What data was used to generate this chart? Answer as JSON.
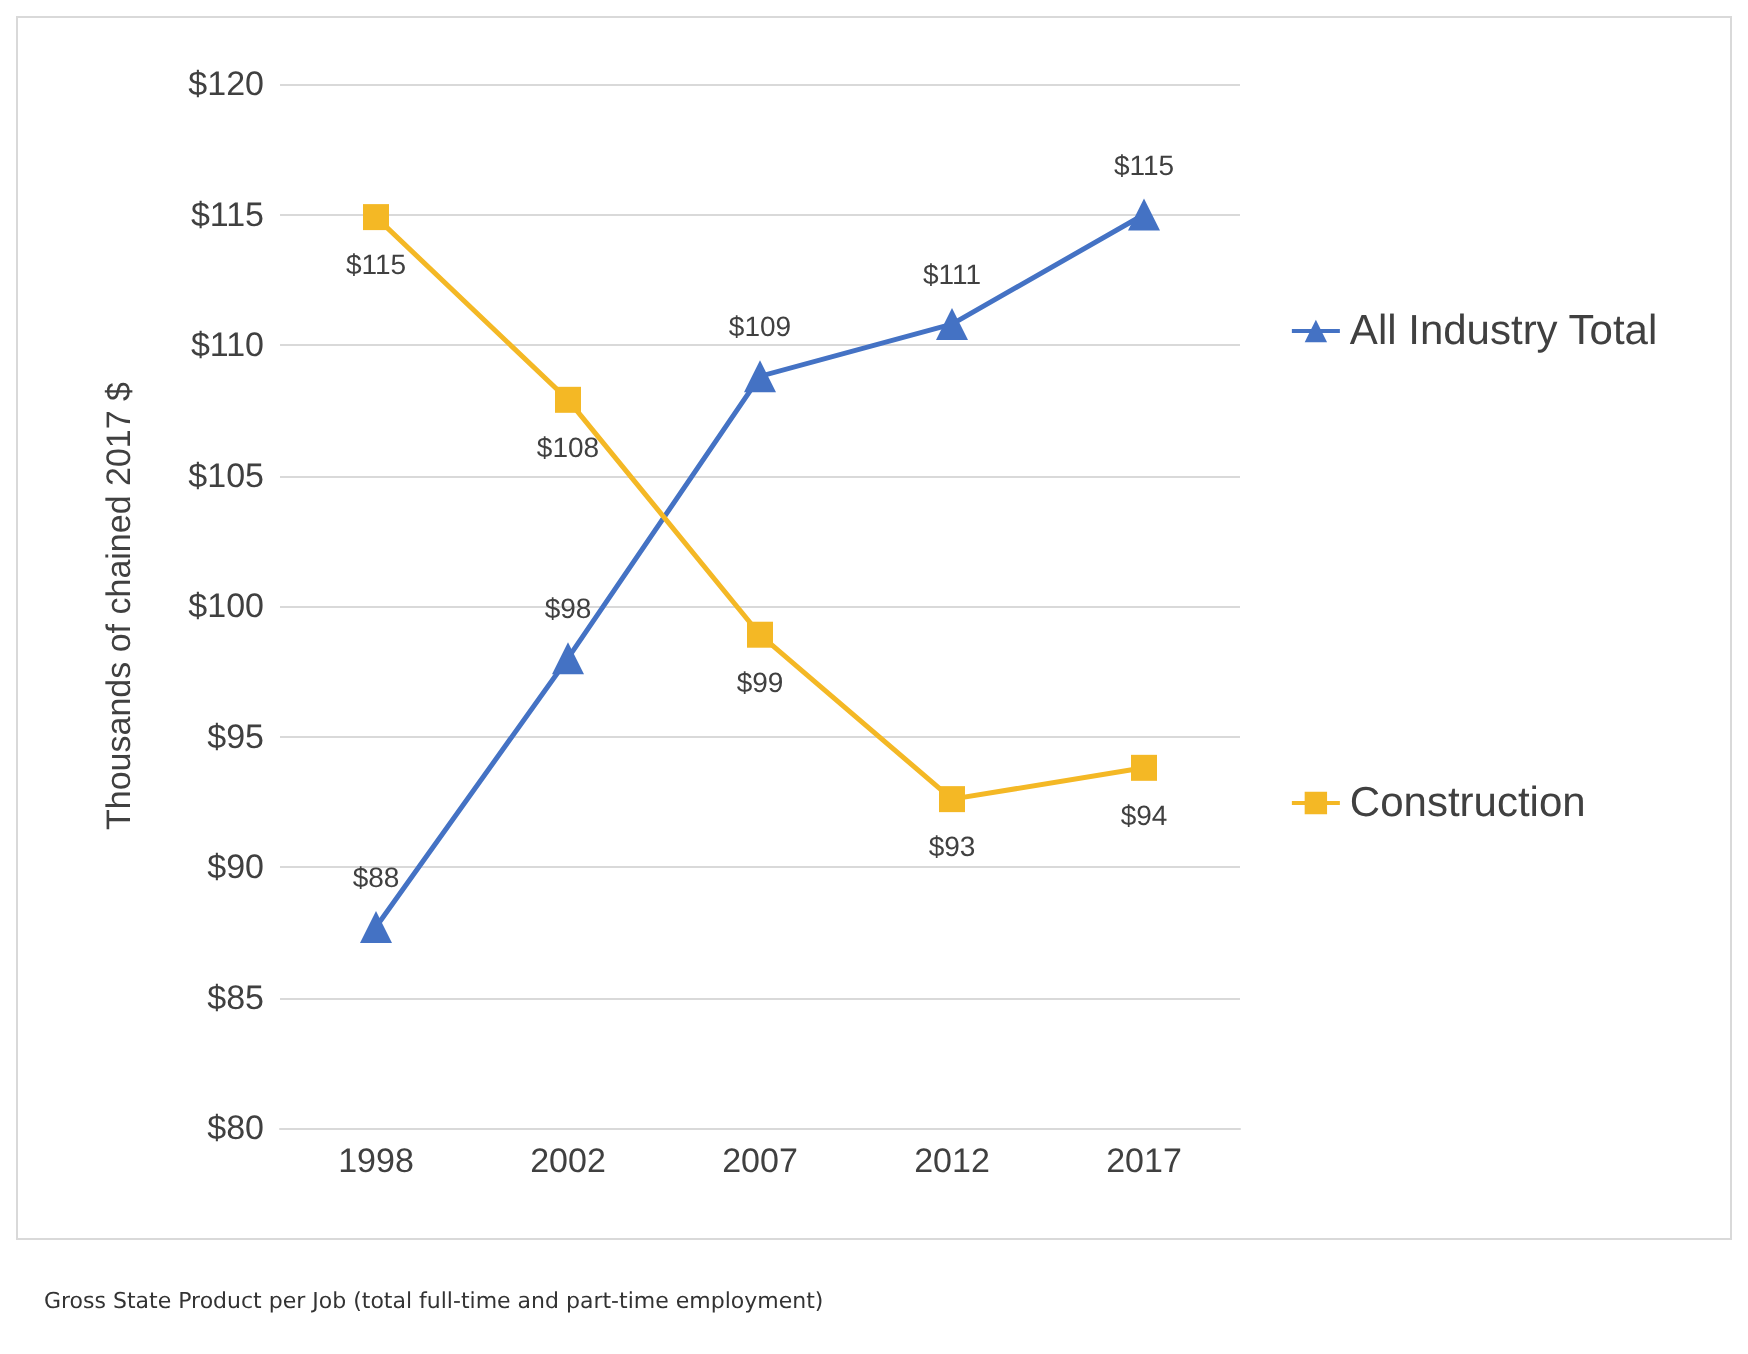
{
  "chart_data": {
    "type": "line",
    "ylabel": "Thousands of chained 2017 $",
    "categories": [
      "1998",
      "2002",
      "2007",
      "2012",
      "2017"
    ],
    "series": [
      {
        "name": "All Industry Total",
        "color": "#4472c4",
        "marker": "triangle",
        "values": [
          87.7,
          98.0,
          108.8,
          110.8,
          115.0
        ],
        "value_labels": [
          "$88",
          "$98",
          "$109",
          "$111",
          "$115"
        ]
      },
      {
        "name": "Construction",
        "color": "#f4b825",
        "marker": "square",
        "values": [
          114.9,
          107.9,
          98.9,
          92.6,
          93.8
        ],
        "value_labels": [
          "$115",
          "$108",
          "$99",
          "$93",
          "$94"
        ]
      }
    ],
    "ylim": [
      80,
      120
    ],
    "yticks": [
      {
        "value": 80,
        "label": "$80"
      },
      {
        "value": 85,
        "label": "$85"
      },
      {
        "value": 90,
        "label": "$90"
      },
      {
        "value": 95,
        "label": "$95"
      },
      {
        "value": 100,
        "label": "$100"
      },
      {
        "value": 105,
        "label": "$105"
      },
      {
        "value": 110,
        "label": "$110"
      },
      {
        "value": 115,
        "label": "$115"
      },
      {
        "value": 120,
        "label": "$120"
      }
    ],
    "grid": "y",
    "legend": "right",
    "annotations": [
      "Gross State Product per Job (total full-time and part-time employment)"
    ]
  }
}
